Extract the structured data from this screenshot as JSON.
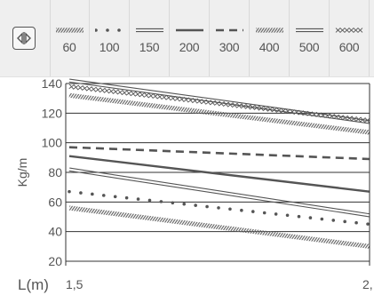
{
  "toolbar": {
    "toggle_icon": "arrows-left-right-icon"
  },
  "chart_data": {
    "type": "line",
    "xlabel": "L(m)",
    "ylabel": "Kg/m",
    "x_tick_labels": [
      "1,5",
      "2,"
    ],
    "xlim": [
      1.5,
      2.0
    ],
    "ylim": [
      20,
      140
    ],
    "y_ticks": [
      20,
      40,
      60,
      80,
      100,
      120,
      140
    ],
    "grid": "horizontal",
    "legend_placement": "top",
    "line_color": "#555555",
    "series": [
      {
        "name": "60",
        "style": "hatched",
        "x": [
          1.5,
          2.0
        ],
        "y": [
          56,
          30
        ]
      },
      {
        "name": "100",
        "style": "dotted",
        "x": [
          1.5,
          2.0
        ],
        "y": [
          67,
          45
        ]
      },
      {
        "name": "150",
        "style": "double",
        "x": [
          1.5,
          2.0
        ],
        "y": [
          82,
          51
        ]
      },
      {
        "name": "200",
        "style": "solid",
        "x": [
          1.5,
          2.0
        ],
        "y": [
          91,
          67
        ]
      },
      {
        "name": "300",
        "style": "dashed",
        "x": [
          1.5,
          2.0
        ],
        "y": [
          97,
          89
        ]
      },
      {
        "name": "400",
        "style": "hatched",
        "x": [
          1.5,
          2.0
        ],
        "y": [
          132,
          107
        ]
      },
      {
        "name": "500",
        "style": "double",
        "x": [
          1.5,
          2.0
        ],
        "y": [
          142,
          114
        ]
      },
      {
        "name": "600",
        "style": "zigzag",
        "x": [
          1.5,
          2.0
        ],
        "y": [
          138,
          115
        ]
      }
    ]
  }
}
